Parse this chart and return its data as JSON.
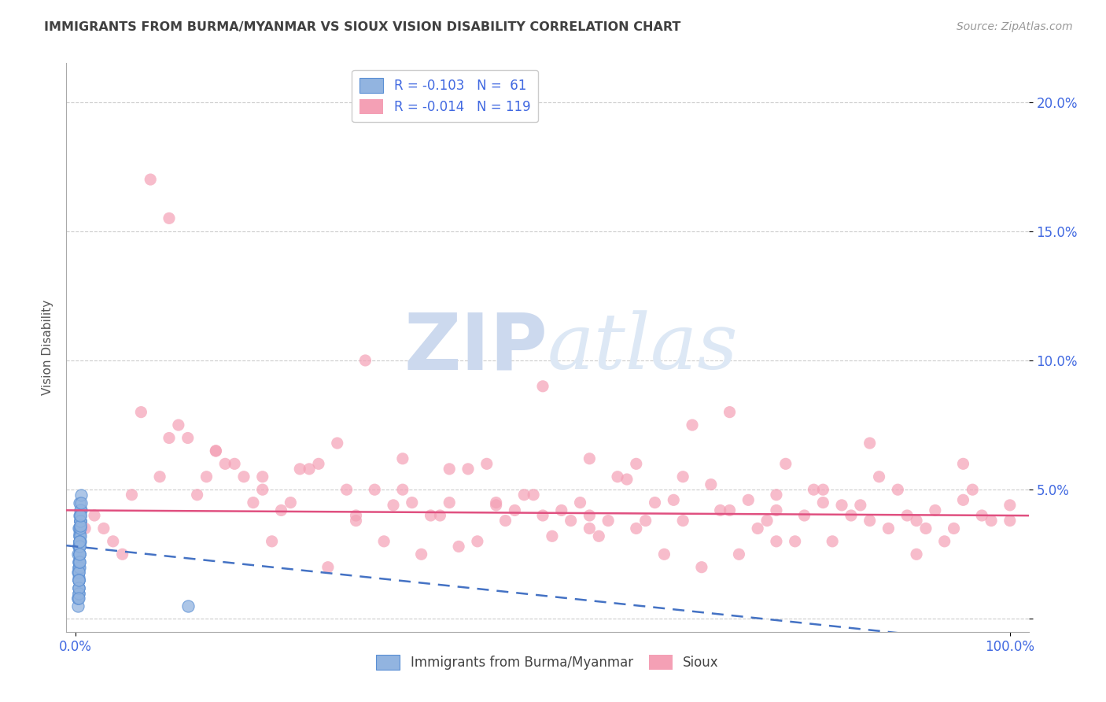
{
  "title": "IMMIGRANTS FROM BURMA/MYANMAR VS SIOUX VISION DISABILITY CORRELATION CHART",
  "source": "Source: ZipAtlas.com",
  "ylabel": "Vision Disability",
  "ytick_values": [
    0.0,
    0.05,
    0.1,
    0.15,
    0.2
  ],
  "ytick_labels": [
    "",
    "5.0%",
    "10.0%",
    "15.0%",
    "20.0%"
  ],
  "xlim": [
    -0.01,
    1.02
  ],
  "ylim": [
    -0.005,
    0.215
  ],
  "color_blue_scatter": "#92b4e0",
  "color_blue_edge": "#5a8fd4",
  "color_pink_scatter": "#f4a0b5",
  "color_trendline_blue": "#4472C4",
  "color_trendline_pink": "#E05080",
  "color_title": "#404040",
  "color_source": "#999999",
  "color_axis_ticks": "#4169E1",
  "color_grid": "#cccccc",
  "watermark_color": "#ccd9ee",
  "blue_x": [
    0.003,
    0.004,
    0.005,
    0.003,
    0.002,
    0.006,
    0.004,
    0.003,
    0.005,
    0.004,
    0.003,
    0.002,
    0.004,
    0.005,
    0.003,
    0.004,
    0.003,
    0.005,
    0.004,
    0.003,
    0.002,
    0.004,
    0.003,
    0.005,
    0.004,
    0.003,
    0.006,
    0.004,
    0.003,
    0.002,
    0.005,
    0.004,
    0.003,
    0.004,
    0.005,
    0.003,
    0.004,
    0.003,
    0.002,
    0.005,
    0.004,
    0.003,
    0.005,
    0.004,
    0.003,
    0.004,
    0.003,
    0.005,
    0.004,
    0.003,
    0.006,
    0.004,
    0.003,
    0.005,
    0.004,
    0.003,
    0.005,
    0.004,
    0.003,
    0.004,
    0.12
  ],
  "blue_y": [
    0.035,
    0.04,
    0.038,
    0.028,
    0.025,
    0.042,
    0.032,
    0.02,
    0.036,
    0.03,
    0.022,
    0.018,
    0.033,
    0.038,
    0.028,
    0.045,
    0.015,
    0.03,
    0.025,
    0.012,
    0.008,
    0.035,
    0.02,
    0.042,
    0.028,
    0.016,
    0.048,
    0.032,
    0.01,
    0.005,
    0.038,
    0.025,
    0.018,
    0.03,
    0.04,
    0.022,
    0.028,
    0.015,
    0.008,
    0.032,
    0.02,
    0.012,
    0.035,
    0.025,
    0.018,
    0.03,
    0.01,
    0.038,
    0.022,
    0.015,
    0.045,
    0.028,
    0.012,
    0.036,
    0.022,
    0.008,
    0.04,
    0.025,
    0.015,
    0.03,
    0.005
  ],
  "pink_x": [
    0.02,
    0.04,
    0.07,
    0.09,
    0.12,
    0.15,
    0.17,
    0.2,
    0.23,
    0.26,
    0.1,
    0.13,
    0.18,
    0.22,
    0.28,
    0.32,
    0.35,
    0.38,
    0.42,
    0.45,
    0.48,
    0.52,
    0.55,
    0.58,
    0.62,
    0.65,
    0.68,
    0.72,
    0.75,
    0.78,
    0.82,
    0.85,
    0.88,
    0.92,
    0.95,
    0.98,
    1.0,
    0.3,
    0.4,
    0.5,
    0.6,
    0.7,
    0.8,
    0.9,
    0.25,
    0.35,
    0.45,
    0.55,
    0.65,
    0.75,
    0.05,
    0.08,
    0.11,
    0.14,
    0.19,
    0.24,
    0.29,
    0.34,
    0.39,
    0.44,
    0.49,
    0.54,
    0.59,
    0.64,
    0.69,
    0.74,
    0.79,
    0.84,
    0.89,
    0.94,
    0.03,
    0.06,
    0.16,
    0.21,
    0.27,
    0.33,
    0.43,
    0.53,
    0.63,
    0.73,
    0.83,
    0.93,
    0.47,
    0.57,
    0.67,
    0.77,
    0.87,
    0.97,
    0.37,
    0.41,
    0.51,
    0.61,
    0.71,
    0.81,
    0.91,
    0.31,
    0.5,
    0.7,
    0.85,
    0.95,
    0.2,
    0.4,
    0.6,
    0.8,
    1.0,
    0.15,
    0.55,
    0.75,
    0.9,
    0.1,
    0.3,
    0.66,
    0.76,
    0.86,
    0.96,
    0.36,
    0.46,
    0.56,
    0.01
  ],
  "pink_y": [
    0.04,
    0.03,
    0.08,
    0.055,
    0.07,
    0.065,
    0.06,
    0.05,
    0.045,
    0.06,
    0.155,
    0.048,
    0.055,
    0.042,
    0.068,
    0.05,
    0.062,
    0.04,
    0.058,
    0.045,
    0.048,
    0.042,
    0.062,
    0.055,
    0.045,
    0.038,
    0.052,
    0.046,
    0.042,
    0.04,
    0.044,
    0.038,
    0.05,
    0.042,
    0.046,
    0.038,
    0.044,
    0.038,
    0.045,
    0.04,
    0.035,
    0.042,
    0.05,
    0.038,
    0.058,
    0.05,
    0.044,
    0.04,
    0.055,
    0.048,
    0.025,
    0.17,
    0.075,
    0.055,
    0.045,
    0.058,
    0.05,
    0.044,
    0.04,
    0.06,
    0.048,
    0.045,
    0.054,
    0.046,
    0.042,
    0.038,
    0.05,
    0.044,
    0.04,
    0.035,
    0.035,
    0.048,
    0.06,
    0.03,
    0.02,
    0.03,
    0.03,
    0.038,
    0.025,
    0.035,
    0.04,
    0.03,
    0.042,
    0.038,
    0.02,
    0.03,
    0.035,
    0.04,
    0.025,
    0.028,
    0.032,
    0.038,
    0.025,
    0.03,
    0.035,
    0.1,
    0.09,
    0.08,
    0.068,
    0.06,
    0.055,
    0.058,
    0.06,
    0.045,
    0.038,
    0.065,
    0.035,
    0.03,
    0.025,
    0.07,
    0.04,
    0.075,
    0.06,
    0.055,
    0.05,
    0.045,
    0.038,
    0.032,
    0.035
  ]
}
